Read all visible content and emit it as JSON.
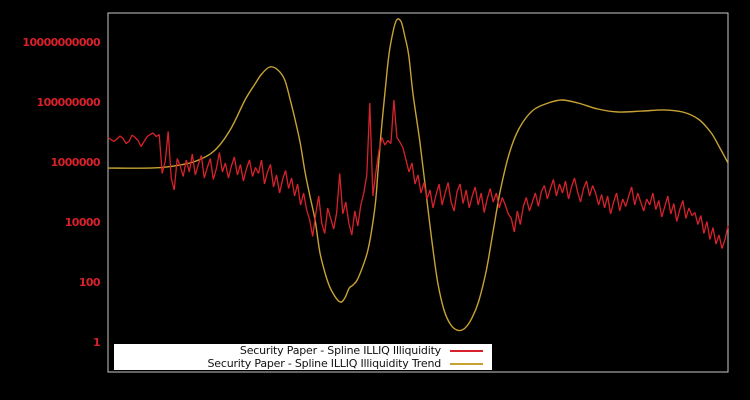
{
  "window": {
    "background": "#000000"
  },
  "chart_data": {
    "type": "line",
    "title": "",
    "xlabel": "",
    "ylabel": "",
    "y_scale": "log10",
    "grid": false,
    "legend_position": "bottom-center-inside",
    "axis_color": "#c8c8c8",
    "tick_label_color": "#d7222c",
    "ylim_log10": [
      -1,
      11
    ],
    "y_ticks": [
      {
        "label": "10000000000",
        "log10": 10
      },
      {
        "label": "100000000",
        "log10": 8
      },
      {
        "label": "1000000",
        "log10": 6
      },
      {
        "label": "10000",
        "log10": 4
      },
      {
        "label": "100",
        "log10": 2
      },
      {
        "label": "1",
        "log10": 0
      }
    ],
    "series": [
      {
        "name": "Security Paper - Spline ILLIQ Illiquidity",
        "color": "#d7222c",
        "style": "noisy-line",
        "x_spacing": "even-across-x-axis",
        "log10_values": [
          6.85,
          6.78,
          6.72,
          6.8,
          6.9,
          6.82,
          6.65,
          6.72,
          6.93,
          6.85,
          6.75,
          6.55,
          6.72,
          6.88,
          6.95,
          7.0,
          6.88,
          6.95,
          5.65,
          6.05,
          7.05,
          5.5,
          5.1,
          6.15,
          5.9,
          5.55,
          6.1,
          5.7,
          6.3,
          5.6,
          5.95,
          6.25,
          5.5,
          5.85,
          6.15,
          5.45,
          5.8,
          6.35,
          5.7,
          6.0,
          5.5,
          5.9,
          6.2,
          5.6,
          5.95,
          5.4,
          5.8,
          6.1,
          5.55,
          5.85,
          5.65,
          6.1,
          5.3,
          5.7,
          5.95,
          5.2,
          5.6,
          5.0,
          5.45,
          5.75,
          5.15,
          5.5,
          4.9,
          5.3,
          4.6,
          5.0,
          4.45,
          4.1,
          3.55,
          4.3,
          4.9,
          4.0,
          3.65,
          4.5,
          4.15,
          3.8,
          4.35,
          5.65,
          4.3,
          4.7,
          4.0,
          3.6,
          4.4,
          3.9,
          4.6,
          5.0,
          5.6,
          8.0,
          4.9,
          5.7,
          6.4,
          6.85,
          6.6,
          6.75,
          6.65,
          8.1,
          6.85,
          6.7,
          6.5,
          6.1,
          5.7,
          6.0,
          5.3,
          5.6,
          5.0,
          5.35,
          4.8,
          5.1,
          4.5,
          4.95,
          5.3,
          4.6,
          5.0,
          5.35,
          4.7,
          4.4,
          5.05,
          5.3,
          4.65,
          5.1,
          4.5,
          4.9,
          5.2,
          4.6,
          5.0,
          4.35,
          4.8,
          5.15,
          4.7,
          5.0,
          4.5,
          4.85,
          4.6,
          4.3,
          4.15,
          3.7,
          4.4,
          3.95,
          4.55,
          4.85,
          4.4,
          4.7,
          5.0,
          4.55,
          5.05,
          5.25,
          4.8,
          5.15,
          5.45,
          4.9,
          5.3,
          5.0,
          5.4,
          4.8,
          5.2,
          5.5,
          5.05,
          4.7,
          5.15,
          5.4,
          4.9,
          5.25,
          5.0,
          4.6,
          4.95,
          4.5,
          4.9,
          4.3,
          4.7,
          5.0,
          4.4,
          4.8,
          4.55,
          4.9,
          5.2,
          4.6,
          5.0,
          4.7,
          4.4,
          4.8,
          4.6,
          5.0,
          4.45,
          4.75,
          4.2,
          4.55,
          4.9,
          4.3,
          4.65,
          4.05,
          4.45,
          4.75,
          4.15,
          4.5,
          4.25,
          4.35,
          3.95,
          4.25,
          3.65,
          4.05,
          3.45,
          3.85,
          3.3,
          3.6,
          3.15,
          3.45,
          3.9
        ]
      },
      {
        "name": "Security Paper - Spline ILLIQ Illiquidity Trend",
        "color": "#c8a234",
        "style": "smooth-line",
        "points_x01_log10": [
          [
            0.0,
            5.83
          ],
          [
            0.068,
            5.83
          ],
          [
            0.1,
            5.88
          ],
          [
            0.14,
            6.05
          ],
          [
            0.171,
            6.4
          ],
          [
            0.197,
            7.1
          ],
          [
            0.221,
            8.1
          ],
          [
            0.237,
            8.63
          ],
          [
            0.248,
            8.97
          ],
          [
            0.261,
            9.2
          ],
          [
            0.274,
            9.1
          ],
          [
            0.285,
            8.77
          ],
          [
            0.294,
            8.1
          ],
          [
            0.302,
            7.43
          ],
          [
            0.31,
            6.67
          ],
          [
            0.318,
            5.67
          ],
          [
            0.326,
            4.87
          ],
          [
            0.334,
            4.1
          ],
          [
            0.342,
            3.0
          ],
          [
            0.352,
            2.2
          ],
          [
            0.361,
            1.73
          ],
          [
            0.374,
            1.37
          ],
          [
            0.382,
            1.5
          ],
          [
            0.389,
            1.83
          ],
          [
            0.395,
            1.93
          ],
          [
            0.402,
            2.1
          ],
          [
            0.41,
            2.5
          ],
          [
            0.418,
            3.0
          ],
          [
            0.424,
            3.6
          ],
          [
            0.431,
            4.6
          ],
          [
            0.435,
            5.6
          ],
          [
            0.44,
            6.9
          ],
          [
            0.447,
            8.4
          ],
          [
            0.453,
            9.6
          ],
          [
            0.46,
            10.4
          ],
          [
            0.466,
            10.78
          ],
          [
            0.473,
            10.7
          ],
          [
            0.479,
            10.2
          ],
          [
            0.485,
            9.6
          ],
          [
            0.492,
            8.3
          ],
          [
            0.503,
            6.7
          ],
          [
            0.513,
            5.0
          ],
          [
            0.523,
            3.3
          ],
          [
            0.532,
            2.0
          ],
          [
            0.542,
            1.1
          ],
          [
            0.553,
            0.6
          ],
          [
            0.565,
            0.42
          ],
          [
            0.576,
            0.5
          ],
          [
            0.587,
            0.83
          ],
          [
            0.598,
            1.4
          ],
          [
            0.61,
            2.4
          ],
          [
            0.621,
            3.7
          ],
          [
            0.632,
            5.0
          ],
          [
            0.647,
            6.3
          ],
          [
            0.663,
            7.15
          ],
          [
            0.685,
            7.75
          ],
          [
            0.71,
            8.0
          ],
          [
            0.732,
            8.1
          ],
          [
            0.758,
            8.0
          ],
          [
            0.79,
            7.8
          ],
          [
            0.823,
            7.7
          ],
          [
            0.861,
            7.73
          ],
          [
            0.895,
            7.77
          ],
          [
            0.927,
            7.7
          ],
          [
            0.953,
            7.45
          ],
          [
            0.973,
            7.0
          ],
          [
            0.987,
            6.5
          ],
          [
            1.0,
            6.0
          ]
        ]
      }
    ]
  },
  "legend": {
    "background": "#ffffff",
    "text_color": "#111111"
  }
}
